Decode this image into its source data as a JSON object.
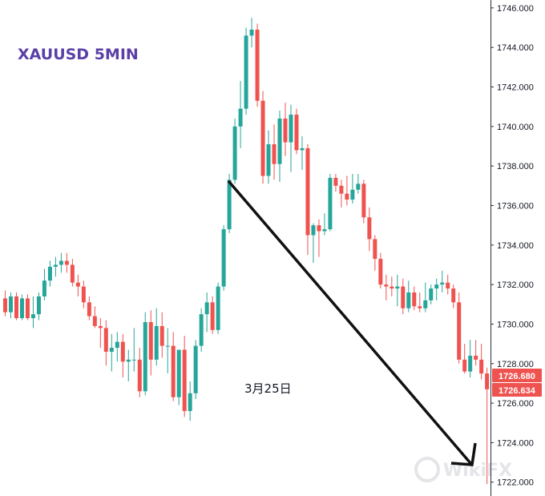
{
  "colors": {
    "up": "#26a69a",
    "down": "#ef5350",
    "arrow": "#111111",
    "title": "#5b3fa8",
    "tag": "#ef5350"
  },
  "chart_data": {
    "type": "candlestick",
    "title": "XAUUSD 5MIN",
    "annotation": "3月25日",
    "ylim": [
      1721.3,
      1746.4
    ],
    "y_ticks": [
      "1746.000",
      "1744.000",
      "1742.000",
      "1740.000",
      "1738.000",
      "1736.000",
      "1734.000",
      "1732.000",
      "1730.000",
      "1728.000",
      "1726.000",
      "1724.000",
      "1722.000"
    ],
    "price_labels": [
      "1726.680",
      "1726.634"
    ],
    "ohlc": [
      [
        1731.3,
        1731.7,
        1730.4,
        1730.6
      ],
      [
        1730.6,
        1731.6,
        1730.3,
        1731.4
      ],
      [
        1731.4,
        1731.6,
        1730.2,
        1730.3
      ],
      [
        1730.3,
        1731.5,
        1730.2,
        1731.3
      ],
      [
        1731.3,
        1731.5,
        1730.2,
        1730.3
      ],
      [
        1730.3,
        1731.4,
        1729.8,
        1730.5
      ],
      [
        1730.5,
        1731.6,
        1730.2,
        1731.4
      ],
      [
        1731.4,
        1732.8,
        1731.2,
        1732.2
      ],
      [
        1732.2,
        1733.2,
        1731.9,
        1732.9
      ],
      [
        1732.9,
        1733.4,
        1732.4,
        1733.0
      ],
      [
        1733.0,
        1733.6,
        1732.6,
        1733.2
      ],
      [
        1733.2,
        1733.6,
        1732.6,
        1733.0
      ],
      [
        1733.0,
        1733.3,
        1731.9,
        1732.1
      ],
      [
        1732.1,
        1732.5,
        1731.4,
        1731.9
      ],
      [
        1731.9,
        1732.2,
        1730.8,
        1731.1
      ],
      [
        1731.1,
        1731.4,
        1730.2,
        1730.4
      ],
      [
        1730.4,
        1730.9,
        1729.8,
        1729.9
      ],
      [
        1729.9,
        1730.3,
        1728.8,
        1729.8
      ],
      [
        1729.8,
        1730.2,
        1727.9,
        1728.6
      ],
      [
        1728.6,
        1729.5,
        1727.6,
        1728.8
      ],
      [
        1728.8,
        1729.6,
        1728.1,
        1729.1
      ],
      [
        1729.1,
        1729.5,
        1727.3,
        1728.1
      ],
      [
        1728.1,
        1728.7,
        1727.1,
        1728.2
      ],
      [
        1728.2,
        1729.8,
        1727.6,
        1728.2
      ],
      [
        1728.2,
        1728.8,
        1726.3,
        1726.6
      ],
      [
        1726.6,
        1730.6,
        1726.4,
        1730.1
      ],
      [
        1730.1,
        1730.7,
        1727.4,
        1728.2
      ],
      [
        1728.2,
        1730.8,
        1727.9,
        1729.9
      ],
      [
        1729.9,
        1730.6,
        1728.3,
        1728.9
      ],
      [
        1728.9,
        1729.8,
        1727.5,
        1728.9
      ],
      [
        1728.9,
        1729.6,
        1726.1,
        1726.3
      ],
      [
        1726.3,
        1728.7,
        1725.9,
        1728.7
      ],
      [
        1728.7,
        1729.4,
        1725.3,
        1725.6
      ],
      [
        1725.6,
        1727.1,
        1725.1,
        1726.5
      ],
      [
        1726.5,
        1729.2,
        1726.2,
        1728.9
      ],
      [
        1728.9,
        1730.8,
        1728.6,
        1730.5
      ],
      [
        1730.5,
        1731.6,
        1729.6,
        1731.1
      ],
      [
        1731.1,
        1731.4,
        1729.5,
        1729.7
      ],
      [
        1729.7,
        1732.1,
        1729.5,
        1731.9
      ],
      [
        1731.9,
        1735.0,
        1731.7,
        1734.8
      ],
      [
        1734.8,
        1737.6,
        1734.6,
        1737.3
      ],
      [
        1737.3,
        1740.4,
        1737.1,
        1740.0
      ],
      [
        1740.0,
        1742.3,
        1738.9,
        1740.9
      ],
      [
        1740.9,
        1745.0,
        1740.6,
        1744.6
      ],
      [
        1744.6,
        1745.5,
        1744.0,
        1744.9
      ],
      [
        1744.9,
        1745.2,
        1741.0,
        1741.3
      ],
      [
        1741.3,
        1741.8,
        1737.1,
        1737.5
      ],
      [
        1737.5,
        1739.8,
        1737.1,
        1739.1
      ],
      [
        1739.1,
        1740.1,
        1737.3,
        1738.1
      ],
      [
        1738.1,
        1740.8,
        1737.2,
        1740.4
      ],
      [
        1740.4,
        1741.2,
        1738.5,
        1739.2
      ],
      [
        1739.2,
        1741.1,
        1737.7,
        1740.6
      ],
      [
        1740.6,
        1740.9,
        1738.6,
        1738.8
      ],
      [
        1738.8,
        1739.5,
        1737.8,
        1738.9
      ],
      [
        1738.9,
        1739.1,
        1733.5,
        1734.5
      ],
      [
        1734.5,
        1735.1,
        1733.1,
        1735.0
      ],
      [
        1735.0,
        1735.3,
        1733.4,
        1734.7
      ],
      [
        1734.7,
        1735.6,
        1734.5,
        1734.8
      ],
      [
        1734.8,
        1737.6,
        1734.7,
        1737.4
      ],
      [
        1737.4,
        1737.6,
        1736.7,
        1737.0
      ],
      [
        1737.0,
        1737.3,
        1735.9,
        1736.6
      ],
      [
        1736.6,
        1737.5,
        1736.0,
        1736.3
      ],
      [
        1736.3,
        1737.6,
        1736.1,
        1736.8
      ],
      [
        1736.8,
        1737.6,
        1736.6,
        1737.1
      ],
      [
        1737.1,
        1737.3,
        1735.1,
        1735.4
      ],
      [
        1735.4,
        1735.9,
        1733.7,
        1734.3
      ],
      [
        1734.3,
        1734.5,
        1732.7,
        1733.3
      ],
      [
        1733.3,
        1733.6,
        1731.8,
        1732.0
      ],
      [
        1732.0,
        1732.5,
        1731.2,
        1731.9
      ],
      [
        1731.9,
        1732.4,
        1731.4,
        1731.8
      ],
      [
        1731.8,
        1732.5,
        1730.9,
        1731.9
      ],
      [
        1731.9,
        1732.3,
        1730.5,
        1730.8
      ],
      [
        1730.8,
        1732.2,
        1730.6,
        1731.6
      ],
      [
        1731.6,
        1731.9,
        1730.7,
        1730.9
      ],
      [
        1730.9,
        1731.6,
        1730.6,
        1730.8
      ],
      [
        1730.8,
        1732.1,
        1730.6,
        1731.2
      ],
      [
        1731.2,
        1732.0,
        1731.0,
        1731.8
      ],
      [
        1731.8,
        1732.3,
        1731.2,
        1732.0
      ],
      [
        1732.0,
        1732.7,
        1731.6,
        1732.1
      ],
      [
        1732.1,
        1732.5,
        1731.5,
        1731.8
      ],
      [
        1731.8,
        1732.0,
        1730.8,
        1731.1
      ],
      [
        1731.1,
        1731.6,
        1728.0,
        1728.2
      ],
      [
        1728.2,
        1729.0,
        1727.5,
        1727.6
      ],
      [
        1727.6,
        1729.2,
        1727.3,
        1728.4
      ],
      [
        1728.4,
        1729.2,
        1727.9,
        1728.2
      ],
      [
        1728.2,
        1729.0,
        1727.2,
        1727.5
      ],
      [
        1727.5,
        1727.8,
        1721.9,
        1726.7
      ]
    ]
  },
  "watermark": "WikiFX"
}
